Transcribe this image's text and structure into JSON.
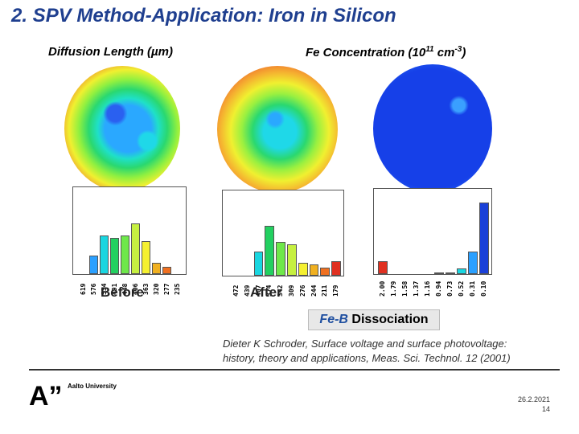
{
  "slide": {
    "title": "2. SPV Method-Application: Iron in Silicon",
    "header_left": "Diffusion Length (µm)",
    "header_right_main": "Fe Concentration (10",
    "header_right_exp": "11",
    "header_right_unit": " cm",
    "header_right_unit_exp": "-3",
    "header_right_close": ")",
    "before_label": "Before",
    "after_label": "After",
    "fe_b_prefix": "Fe-B",
    "fe_b_suffix": " Dissociation",
    "citation_line1": "Dieter K Schroder, Surface voltage and surface photovoltage:",
    "citation_line2": "history, theory and applications, Meas. Sci. Technol. 12 (2001)",
    "logo_mark": "A”",
    "logo_text": "Aalto University",
    "date": "26.2.2021",
    "page": "14"
  },
  "histograms": {
    "before": {
      "categories": [
        "619",
        "576",
        "534",
        "491",
        "448",
        "406",
        "363",
        "320",
        "277",
        "235"
      ],
      "values": [
        0.0,
        0.22,
        0.46,
        0.43,
        0.46,
        0.61,
        0.39,
        0.13,
        0.09,
        0.0
      ],
      "colors": [
        "#3050ff",
        "#2aa0ff",
        "#19d6e0",
        "#22d060",
        "#6ee84a",
        "#c6f040",
        "#f5f030",
        "#f0b020",
        "#f07020",
        "#e03020"
      ]
    },
    "after": {
      "categories": [
        "472",
        "439",
        "407",
        "374",
        "342",
        "309",
        "276",
        "244",
        "211",
        "179"
      ],
      "values": [
        0.0,
        0.0,
        0.29,
        0.61,
        0.41,
        0.38,
        0.16,
        0.14,
        0.1,
        0.18
      ],
      "colors": [
        "#3050ff",
        "#2aa0ff",
        "#19d6e0",
        "#22d060",
        "#6ee84a",
        "#c6f040",
        "#f5f030",
        "#f0b020",
        "#f07020",
        "#e03020"
      ]
    },
    "fe": {
      "categories": [
        "2.00",
        "1.79",
        "1.58",
        "1.37",
        "1.16",
        "0.94",
        "0.73",
        "0.52",
        "0.31",
        "0.10"
      ],
      "values": [
        0.16,
        0.0,
        0.0,
        0.0,
        0.0,
        0.01,
        0.01,
        0.07,
        0.27,
        0.87
      ],
      "colors": [
        "#e03020",
        "#f07020",
        "#f0b020",
        "#f5f030",
        "#c6f040",
        "#6ee84a",
        "#22d060",
        "#19d6e0",
        "#2aa0ff",
        "#1a40d8"
      ]
    }
  }
}
